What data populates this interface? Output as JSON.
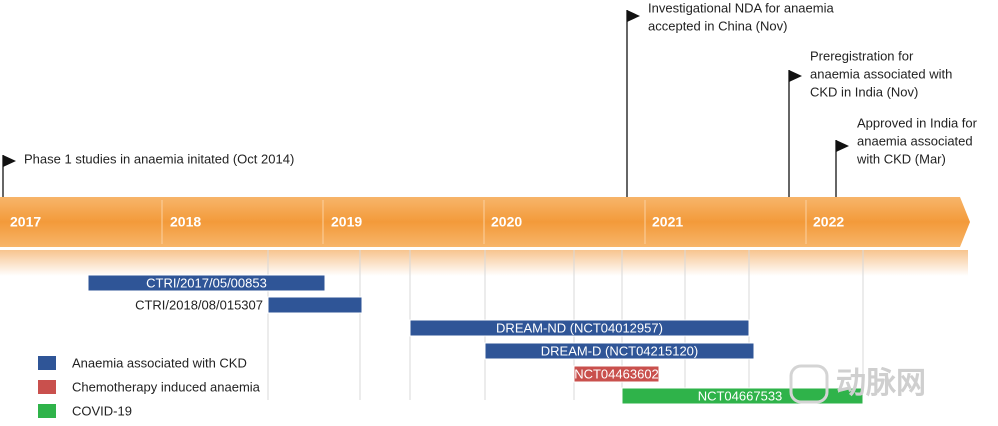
{
  "years": [
    "2017",
    "2018",
    "2019",
    "2020",
    "2021",
    "2022"
  ],
  "milestones": [
    {
      "lines": [
        "Phase 1 studies in anaemia initated (Oct 2014)"
      ]
    },
    {
      "lines": [
        "Investigational NDA for anaemia",
        "accepted in China (Nov)"
      ]
    },
    {
      "lines": [
        "Preregistration for",
        "anaemia associated with",
        "CKD in India (Nov)"
      ]
    },
    {
      "lines": [
        "Approved in India for",
        "anaemia associated",
        "with CKD (Mar)"
      ]
    }
  ],
  "trials": [
    {
      "label": "CTRI/2017/05/00853",
      "category": 0
    },
    {
      "label": "CTRI/2018/08/015307",
      "category": 0
    },
    {
      "label": "DREAM-ND (NCT04012957)",
      "category": 0
    },
    {
      "label": "DREAM-D (NCT04215120)",
      "category": 0
    },
    {
      "label": "NCT04463602",
      "category": 1
    },
    {
      "label": "NCT04667533",
      "category": 2
    }
  ],
  "legend": [
    {
      "label": "Anaemia associated with CKD",
      "color": "#2f5597"
    },
    {
      "label": "Chemotherapy induced anaemia",
      "color": "#c9504d"
    },
    {
      "label": "COVID-19",
      "color": "#2fb34a"
    }
  ],
  "watermark": "动脉网"
}
